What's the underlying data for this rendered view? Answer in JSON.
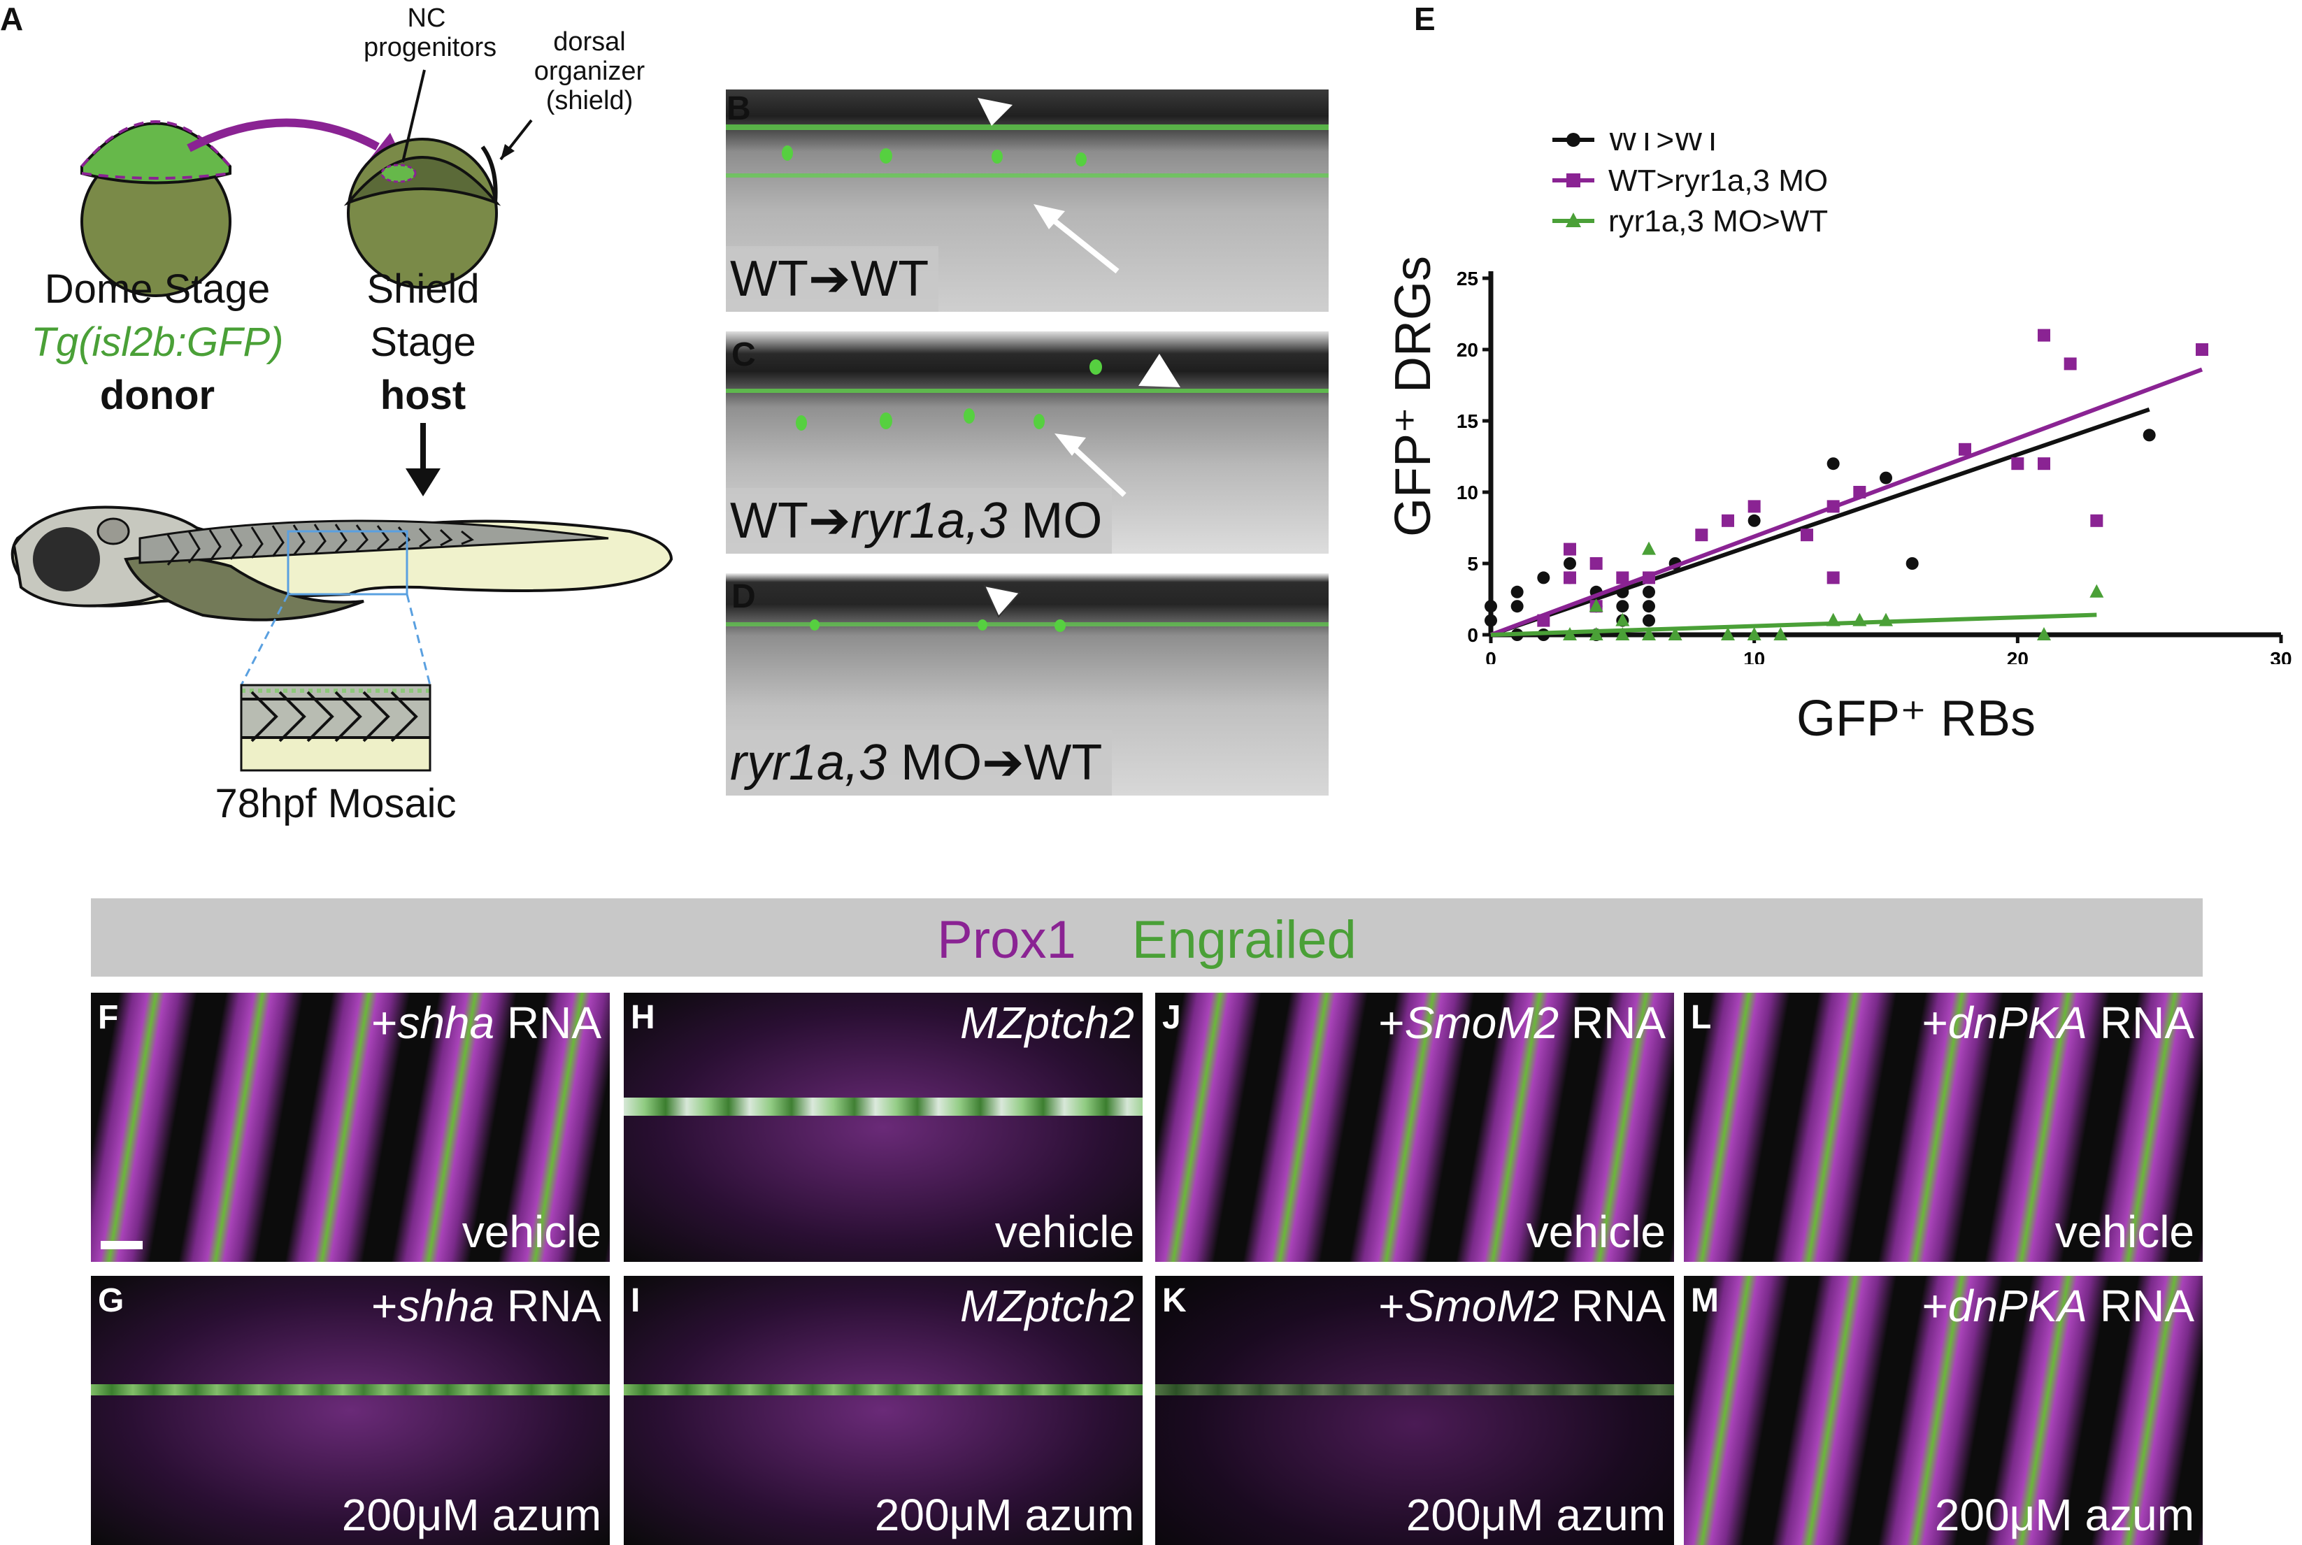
{
  "panel_letters": {
    "A": "A",
    "B": "B",
    "C": "C",
    "D": "D",
    "E": "E",
    "F": "F",
    "G": "G",
    "H": "H",
    "I": "I",
    "J": "J",
    "K": "K",
    "L": "L",
    "M": "M"
  },
  "panelA": {
    "nc_progenitors": "NC progenitors",
    "dorsal_organizer": "dorsal organizer (shield)",
    "dome_stage": "Dome Stage",
    "transgene": "Tg(isl2b:GFP)",
    "donor": "donor",
    "shield_stage_1": "Shield",
    "shield_stage_2": "Stage",
    "host": "host",
    "mosaic": "78hpf Mosaic"
  },
  "panelB": {
    "label_left": "WT",
    "label_right": "WT"
  },
  "panelC": {
    "label_left": "WT",
    "label_right_italic": "ryr1a,3",
    "label_right_rest": " MO"
  },
  "panelD": {
    "label_left_italic": "ryr1a,3",
    "label_left_rest": " MO",
    "label_right": "WT"
  },
  "chart_data": {
    "type": "scatter",
    "xlabel": "GFP⁺ RBs",
    "ylabel": "GFP⁺ DRGs",
    "xlim": [
      0,
      30
    ],
    "ylim": [
      0,
      25
    ],
    "xticks": [
      0,
      10,
      20,
      30
    ],
    "yticks": [
      0,
      5,
      10,
      15,
      20,
      25
    ],
    "legend_position": "top-left",
    "series": [
      {
        "name": "WT>WT",
        "color": "#111111",
        "marker": "circle",
        "points": [
          [
            0,
            1
          ],
          [
            0,
            2
          ],
          [
            1,
            0
          ],
          [
            1,
            2
          ],
          [
            1,
            3
          ],
          [
            2,
            0
          ],
          [
            2,
            4
          ],
          [
            3,
            4
          ],
          [
            3,
            5
          ],
          [
            4,
            0
          ],
          [
            4,
            3
          ],
          [
            4,
            2
          ],
          [
            5,
            1
          ],
          [
            5,
            3
          ],
          [
            5,
            2
          ],
          [
            6,
            1
          ],
          [
            6,
            2
          ],
          [
            6,
            3
          ],
          [
            7,
            5
          ],
          [
            10,
            8
          ],
          [
            13,
            12
          ],
          [
            15,
            11
          ],
          [
            16,
            5
          ],
          [
            25,
            14
          ]
        ],
        "fit": [
          [
            0,
            0
          ],
          [
            25,
            15.8
          ]
        ]
      },
      {
        "name": "WT>ryr1a,3 MO",
        "color": "#8a2393",
        "marker": "square",
        "points": [
          [
            2,
            1
          ],
          [
            3,
            6
          ],
          [
            3,
            4
          ],
          [
            4,
            5
          ],
          [
            4,
            2
          ],
          [
            5,
            4
          ],
          [
            6,
            4
          ],
          [
            8,
            7
          ],
          [
            9,
            8
          ],
          [
            10,
            9
          ],
          [
            12,
            7
          ],
          [
            13,
            9
          ],
          [
            13,
            4
          ],
          [
            14,
            10
          ],
          [
            18,
            13
          ],
          [
            20,
            12
          ],
          [
            21,
            12
          ],
          [
            21,
            21
          ],
          [
            22,
            19
          ],
          [
            23,
            8
          ],
          [
            27,
            20
          ]
        ],
        "fit": [
          [
            0,
            0
          ],
          [
            27,
            18.6
          ]
        ]
      },
      {
        "name": "ryr1a,3 MO>WT",
        "color": "#4aa037",
        "marker": "triangle",
        "points": [
          [
            3,
            0
          ],
          [
            4,
            0
          ],
          [
            4,
            2
          ],
          [
            5,
            0
          ],
          [
            5,
            1
          ],
          [
            6,
            0
          ],
          [
            6,
            6
          ],
          [
            7,
            0
          ],
          [
            9,
            0
          ],
          [
            10,
            0
          ],
          [
            11,
            0
          ],
          [
            13,
            1
          ],
          [
            14,
            1
          ],
          [
            15,
            1
          ],
          [
            21,
            0
          ],
          [
            23,
            3
          ]
        ],
        "fit": [
          [
            0,
            0
          ],
          [
            23,
            1.4
          ]
        ]
      }
    ]
  },
  "lower": {
    "prox1": "Prox1",
    "engrailed": "Engrailed",
    "F_top_italic": "shha",
    "F_top_pre": "+",
    "F_top_post": " RNA",
    "F_bottom": "vehicle",
    "G_top_italic": "shha",
    "G_top_pre": "+",
    "G_top_post": " RNA",
    "G_bottom": "200μM azum",
    "H_top_italic": "MZptch2",
    "H_bottom": "vehicle",
    "I_top_italic": "MZptch2",
    "I_bottom": "200μM azum",
    "J_top_italic": "SmoM2",
    "J_top_pre": "+",
    "J_top_post": " RNA",
    "J_bottom": "vehicle",
    "K_top_italic": "SmoM2",
    "K_top_pre": "+",
    "K_top_post": " RNA",
    "K_bottom": "200μM azum",
    "L_top_italic": "dnPKA",
    "L_top_pre": "+",
    "L_top_post": " RNA",
    "L_bottom": "vehicle",
    "M_top_italic": "dnPKA",
    "M_top_pre": "+",
    "M_top_post": " RNA",
    "M_bottom": "200μM azum"
  },
  "colors": {
    "magenta": "#8a2393",
    "green": "#4aa037",
    "gray_band": "#c8c8c8"
  }
}
